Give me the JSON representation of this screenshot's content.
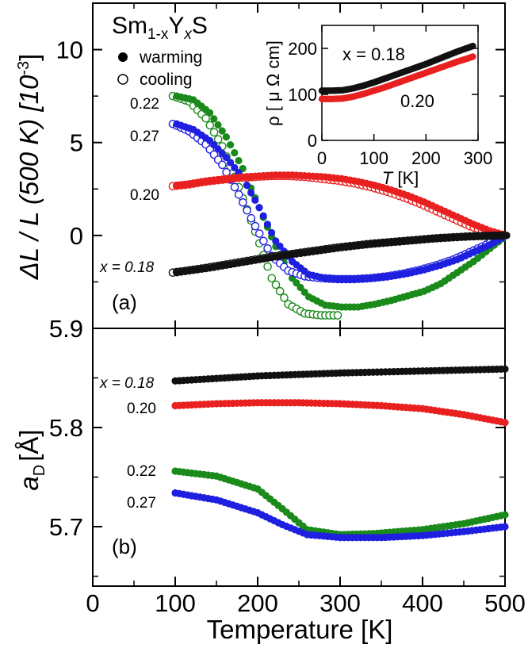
{
  "chart_data": [
    {
      "type": "scatter",
      "panel": "(a)",
      "title": "Sm1-xYxS",
      "title_parts": {
        "base1": "Sm",
        "sub1": "1-x",
        "base2": "Y",
        "sub2": "x",
        "base3": "S"
      },
      "ylabel_parts": {
        "main": "ΔL / L (500 K) [10",
        "sup": "-3",
        "close": "]"
      },
      "xlim": [
        0,
        500
      ],
      "ylim": [
        -5,
        12.5
      ],
      "y_ticks": [
        0,
        5,
        10
      ],
      "y_tick_labels": [
        "0",
        "5",
        "10"
      ],
      "y_bottom_label": "5.9",
      "legend": [
        {
          "marker": "filled",
          "label": "warming"
        },
        {
          "marker": "open",
          "label": "cooling"
        }
      ],
      "series": [
        {
          "name": "0.22",
          "color": "#1a8a1a",
          "warming": [
            [
              100,
              7.5
            ],
            [
              120,
              7.3
            ],
            [
              140,
              6.6
            ],
            [
              160,
              5.3
            ],
            [
              180,
              3.6
            ],
            [
              200,
              1.5
            ],
            [
              220,
              -0.6
            ],
            [
              240,
              -2.3
            ],
            [
              260,
              -3.3
            ],
            [
              280,
              -3.75
            ],
            [
              300,
              -3.85
            ],
            [
              320,
              -3.85
            ],
            [
              340,
              -3.7
            ],
            [
              360,
              -3.5
            ],
            [
              380,
              -3.25
            ],
            [
              400,
              -3.0
            ],
            [
              420,
              -2.6
            ],
            [
              440,
              -2.0
            ],
            [
              460,
              -1.4
            ],
            [
              480,
              -0.7
            ],
            [
              500,
              0
            ]
          ],
          "cooling": [
            [
              100,
              7.5
            ],
            [
              120,
              7.2
            ],
            [
              140,
              6.3
            ],
            [
              160,
              4.8
            ],
            [
              180,
              2.6
            ],
            [
              200,
              0.2
            ],
            [
              220,
              -2.3
            ],
            [
              240,
              -3.7
            ],
            [
              260,
              -4.2
            ],
            [
              280,
              -4.3
            ],
            [
              300,
              -4.3
            ]
          ]
        },
        {
          "name": "0.27",
          "color": "#1f1fe0",
          "warming": [
            [
              100,
              6.0
            ],
            [
              120,
              5.7
            ],
            [
              140,
              5.1
            ],
            [
              160,
              4.2
            ],
            [
              180,
              3.1
            ],
            [
              200,
              1.5
            ],
            [
              220,
              -0.3
            ],
            [
              240,
              -1.4
            ],
            [
              260,
              -2.1
            ],
            [
              280,
              -2.3
            ],
            [
              300,
              -2.35
            ],
            [
              320,
              -2.35
            ],
            [
              340,
              -2.3
            ],
            [
              360,
              -2.2
            ],
            [
              380,
              -2.05
            ],
            [
              400,
              -1.85
            ],
            [
              420,
              -1.6
            ],
            [
              440,
              -1.3
            ],
            [
              460,
              -0.9
            ],
            [
              480,
              -0.5
            ],
            [
              500,
              0
            ]
          ],
          "cooling": [
            [
              100,
              6.0
            ],
            [
              120,
              5.6
            ],
            [
              140,
              4.9
            ],
            [
              160,
              3.8
            ],
            [
              180,
              2.2
            ],
            [
              200,
              0.5
            ],
            [
              220,
              -1.1
            ],
            [
              240,
              -1.9
            ],
            [
              260,
              -2.2
            ],
            [
              280,
              -2.3
            ],
            [
              300,
              -2.35
            ],
            [
              320,
              -2.35
            ],
            [
              340,
              -2.3
            ],
            [
              360,
              -2.2
            ],
            [
              380,
              -2.05
            ],
            [
              400,
              -1.85
            ],
            [
              420,
              -1.6
            ],
            [
              440,
              -1.3
            ],
            [
              460,
              -0.9
            ],
            [
              480,
              -0.5
            ],
            [
              500,
              0
            ]
          ]
        },
        {
          "name": "0.20",
          "color": "#e82020",
          "warming": [
            [
              100,
              2.7
            ],
            [
              120,
              2.8
            ],
            [
              140,
              2.95
            ],
            [
              160,
              3.05
            ],
            [
              180,
              3.15
            ],
            [
              200,
              3.2
            ],
            [
              220,
              3.25
            ],
            [
              240,
              3.25
            ],
            [
              260,
              3.2
            ],
            [
              280,
              3.15
            ],
            [
              300,
              3.05
            ],
            [
              320,
              2.9
            ],
            [
              340,
              2.7
            ],
            [
              360,
              2.45
            ],
            [
              380,
              2.15
            ],
            [
              400,
              1.8
            ],
            [
              420,
              1.4
            ],
            [
              440,
              1.0
            ],
            [
              460,
              0.6
            ],
            [
              480,
              0.25
            ],
            [
              500,
              0
            ]
          ],
          "cooling": [
            [
              100,
              2.65
            ],
            [
              120,
              2.75
            ],
            [
              140,
              2.9
            ],
            [
              160,
              3.0
            ],
            [
              180,
              3.1
            ],
            [
              200,
              3.15
            ],
            [
              220,
              3.2
            ],
            [
              240,
              3.2
            ],
            [
              260,
              3.15
            ],
            [
              280,
              3.05
            ],
            [
              300,
              2.95
            ],
            [
              320,
              2.8
            ],
            [
              340,
              2.6
            ],
            [
              360,
              2.35
            ],
            [
              380,
              2.05
            ],
            [
              400,
              1.7
            ],
            [
              420,
              1.3
            ],
            [
              440,
              0.9
            ],
            [
              460,
              0.5
            ],
            [
              480,
              0.2
            ],
            [
              500,
              0
            ]
          ]
        },
        {
          "name": "x = 0.18",
          "color": "#111111",
          "warming": [
            [
              100,
              -2.0
            ],
            [
              140,
              -1.75
            ],
            [
              180,
              -1.45
            ],
            [
              220,
              -1.15
            ],
            [
              260,
              -0.9
            ],
            [
              300,
              -0.65
            ],
            [
              340,
              -0.45
            ],
            [
              380,
              -0.3
            ],
            [
              420,
              -0.15
            ],
            [
              460,
              -0.05
            ],
            [
              500,
              0
            ]
          ],
          "cooling": [
            [
              100,
              -2.0
            ],
            [
              140,
              -1.75
            ],
            [
              180,
              -1.45
            ],
            [
              220,
              -1.15
            ],
            [
              260,
              -0.9
            ],
            [
              300,
              -0.65
            ],
            [
              340,
              -0.45
            ],
            [
              380,
              -0.3
            ],
            [
              420,
              -0.15
            ],
            [
              460,
              -0.05
            ],
            [
              500,
              0
            ]
          ]
        }
      ]
    },
    {
      "type": "scatter",
      "panel": "(b)",
      "ylabel_parts": {
        "base": "a",
        "sub": "D",
        "unit": "[Å]"
      },
      "xlabel": "Temperature [K]",
      "xlim": [
        0,
        500
      ],
      "ylim": [
        5.64,
        5.9
      ],
      "x_ticks": [
        0,
        100,
        200,
        300,
        400,
        500
      ],
      "x_tick_labels": [
        "0",
        "100",
        "200",
        "300",
        "400",
        "500"
      ],
      "y_ticks": [
        5.7,
        5.8
      ],
      "y_tick_labels": [
        "5.7",
        "5.8"
      ],
      "series": [
        {
          "name": "x = 0.18",
          "color": "#111111",
          "points": [
            [
              100,
              5.847
            ],
            [
              200,
              5.852
            ],
            [
              300,
              5.855
            ],
            [
              400,
              5.857
            ],
            [
              500,
              5.859
            ]
          ]
        },
        {
          "name": "0.20",
          "color": "#e82020",
          "points": [
            [
              100,
              5.822
            ],
            [
              150,
              5.824
            ],
            [
              200,
              5.825
            ],
            [
              250,
              5.825
            ],
            [
              300,
              5.824
            ],
            [
              350,
              5.822
            ],
            [
              400,
              5.819
            ],
            [
              450,
              5.813
            ],
            [
              500,
              5.805
            ]
          ]
        },
        {
          "name": "0.22",
          "color": "#1a8a1a",
          "points": [
            [
              100,
              5.756
            ],
            [
              150,
              5.751
            ],
            [
              200,
              5.738
            ],
            [
              230,
              5.718
            ],
            [
              260,
              5.697
            ],
            [
              300,
              5.692
            ],
            [
              340,
              5.693
            ],
            [
              400,
              5.697
            ],
            [
              450,
              5.703
            ],
            [
              500,
              5.712
            ]
          ]
        },
        {
          "name": "0.27",
          "color": "#1f1fe0",
          "points": [
            [
              100,
              5.734
            ],
            [
              150,
              5.727
            ],
            [
              200,
              5.714
            ],
            [
              230,
              5.702
            ],
            [
              260,
              5.692
            ],
            [
              300,
              5.689
            ],
            [
              350,
              5.689
            ],
            [
              400,
              5.691
            ],
            [
              450,
              5.695
            ],
            [
              500,
              5.7
            ]
          ]
        }
      ]
    },
    {
      "type": "scatter",
      "panel": "inset",
      "ylabel": "ρ [ μ Ω cm]",
      "xlabel_parts": {
        "var": "T",
        "unit": " [K]"
      },
      "xlim": [
        0,
        300
      ],
      "ylim": [
        0,
        250
      ],
      "x_ticks": [
        0,
        100,
        200,
        300
      ],
      "x_tick_labels": [
        "0",
        "100",
        "200",
        "300"
      ],
      "y_ticks": [
        0,
        100,
        200
      ],
      "y_tick_labels": [
        "0",
        "100",
        "200"
      ],
      "series": [
        {
          "name": "x = 0.18",
          "color": "#111111",
          "points": [
            [
              0,
              108
            ],
            [
              20,
              108
            ],
            [
              40,
              109
            ],
            [
              60,
              113
            ],
            [
              80,
              119
            ],
            [
              100,
              126
            ],
            [
              120,
              134
            ],
            [
              140,
              142
            ],
            [
              160,
              150
            ],
            [
              180,
              158
            ],
            [
              200,
              166
            ],
            [
              220,
              175
            ],
            [
              240,
              184
            ],
            [
              260,
              193
            ],
            [
              280,
              201
            ],
            [
              290,
              205
            ]
          ]
        },
        {
          "name": "0.20",
          "color": "#e82020",
          "points": [
            [
              0,
              90
            ],
            [
              20,
              90
            ],
            [
              40,
              91
            ],
            [
              60,
              95
            ],
            [
              80,
              101
            ],
            [
              100,
              108
            ],
            [
              120,
              115
            ],
            [
              140,
              123
            ],
            [
              160,
              131
            ],
            [
              180,
              139
            ],
            [
              200,
              147
            ],
            [
              220,
              155
            ],
            [
              240,
              163
            ],
            [
              260,
              171
            ],
            [
              280,
              178
            ],
            [
              290,
              182
            ]
          ]
        }
      ]
    }
  ],
  "labels": {
    "legend_warming": "warming",
    "legend_cooling": "cooling",
    "panel_a": "(a)",
    "panel_b": "(b)",
    "a_x018": "x = 0.18",
    "a_020": "0.20",
    "a_022": "0.22",
    "a_027": "0.27",
    "b_x018": "x = 0.18",
    "b_020": "0.20",
    "b_022": "0.22",
    "b_027": "0.27",
    "inset_x018": "x = 0.18",
    "inset_020": "0.20"
  }
}
